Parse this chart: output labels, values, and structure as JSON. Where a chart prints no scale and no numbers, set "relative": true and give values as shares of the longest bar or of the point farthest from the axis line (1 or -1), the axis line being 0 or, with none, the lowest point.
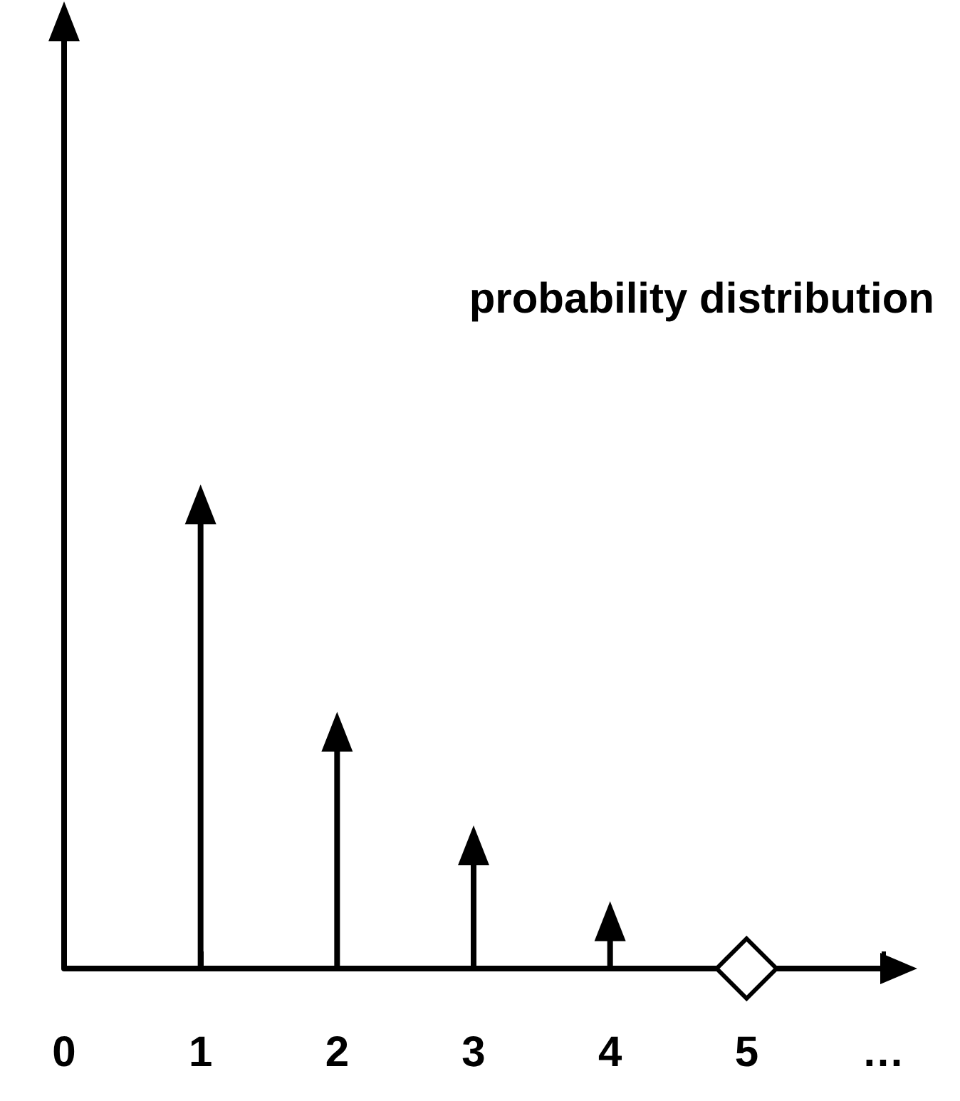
{
  "chart_data": {
    "type": "lollipop",
    "relative": true,
    "marker": "triangle",
    "categories": [
      "0",
      "1",
      "2",
      "3",
      "4",
      "5",
      "…"
    ],
    "series": [
      {
        "type": "lollipop",
        "color": "#000000",
        "values": [
          1,
          0.49,
          0.25,
          0.13,
          0.05,
          null,
          null
        ]
      },
      {
        "type": "scatter",
        "marker": "diamond",
        "color": "#ffffff",
        "values": [
          null,
          null,
          null,
          null,
          null,
          0,
          null
        ]
      }
    ],
    "annotations": [
      "probability distribution"
    ]
  }
}
